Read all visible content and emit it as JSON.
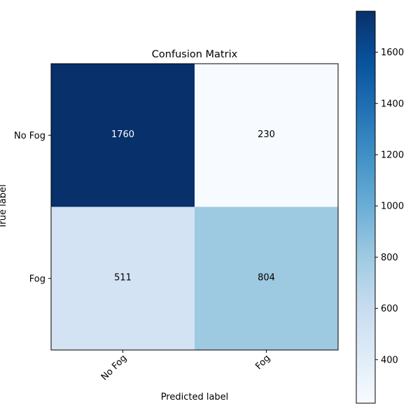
{
  "chart_data": {
    "type": "heatmap",
    "title": "Confusion Matrix",
    "xlabel": "Predicted label",
    "ylabel": "True label",
    "x_categories": [
      "No Fog",
      "Fog"
    ],
    "y_categories": [
      "No Fog",
      "Fog"
    ],
    "values": [
      [
        1760,
        230
      ],
      [
        511,
        804
      ]
    ],
    "colorbar": {
      "ticks": [
        400,
        600,
        800,
        1000,
        1200,
        1400,
        1600
      ],
      "vmin": 230,
      "vmax": 1760,
      "colormap": "Blues"
    }
  }
}
